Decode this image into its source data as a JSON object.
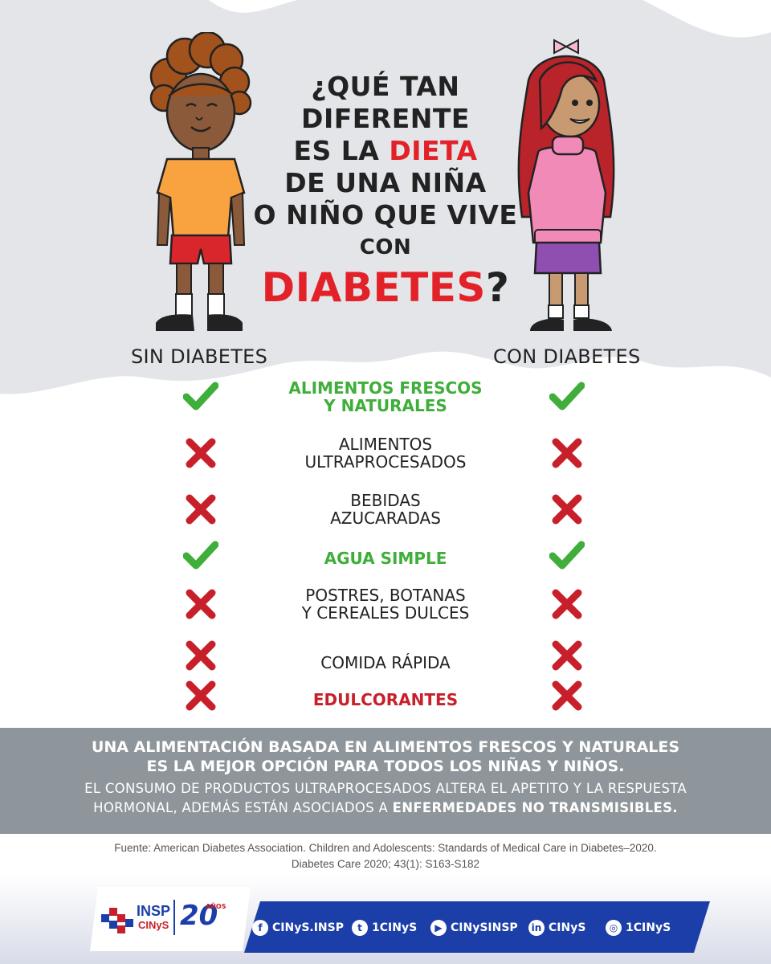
{
  "title": {
    "line1": "¿QUÉ TAN",
    "line2": "DIFERENTE",
    "line3_pre": "ES LA ",
    "line3_red": "DIETA",
    "line4": "DE UNA NIÑA",
    "line5": "O NIÑO QUE VIVE",
    "line6": "CON",
    "line7_red": "DIABETES",
    "line7_post": "?"
  },
  "columns": {
    "left": "SIN DIABETES",
    "right": "CON DIABETES"
  },
  "rows": [
    {
      "line1": "ALIMENTOS FRESCOS",
      "line2": "Y NATURALES",
      "style": "green",
      "sin": "check",
      "con": "check"
    },
    {
      "line1": "ALIMENTOS",
      "line2": "ULTRAPROCESADOS",
      "style": "normal",
      "sin": "cross",
      "con": "cross"
    },
    {
      "line1": "BEBIDAS",
      "line2": "AZUCARADAS",
      "style": "normal",
      "sin": "cross",
      "con": "cross"
    },
    {
      "line1": "AGUA SIMPLE",
      "line2": "",
      "style": "green",
      "sin": "check",
      "con": "check"
    },
    {
      "line1": "POSTRES, BOTANAS",
      "line2": "Y CEREALES DULCES",
      "style": "normal",
      "sin": "cross",
      "con": "cross"
    },
    {
      "line1": "COMIDA RÁPIDA",
      "line2": "",
      "style": "normal",
      "sin": "cross",
      "con": "cross"
    },
    {
      "line1": "EDULCORANTES",
      "line2": "",
      "style": "red",
      "sin": "cross",
      "con": "cross"
    }
  ],
  "banner": {
    "line1": "UNA ALIMENTACIÓN BASADA EN ALIMENTOS FRESCOS Y NATURALES",
    "line2": "ES LA MEJOR OPCIÓN PARA TODOS LOS NIÑAS Y NIÑOS.",
    "line3": "EL CONSUMO DE PRODUCTOS ULTRAPROCESADOS ALTERA EL APETITO Y LA RESPUESTA",
    "line4_pre": "HORMONAL, ADEMÁS ESTÁN ASOCIADOS A ",
    "line4_bold": "ENFERMEDADES NO TRANSMISIBLES."
  },
  "source": {
    "line1": "Fuente: American Diabetes Association. Children and Adolescents: Standards of Medical Care in Diabetes–2020.",
    "line2": "Diabetes Care 2020; 43(1): S163-S182"
  },
  "logo": {
    "insp": "INSP",
    "cinys": "CINyS",
    "anniversary_num": "20",
    "anniversary_word": "AÑOS"
  },
  "social": [
    {
      "icon": "facebook-icon",
      "glyph": "f",
      "handle": "CINyS.INSP"
    },
    {
      "icon": "twitter-icon",
      "glyph": "t",
      "handle": "1CINyS"
    },
    {
      "icon": "youtube-icon",
      "glyph": "▶",
      "handle": "CINySINSP"
    },
    {
      "icon": "linkedin-icon",
      "glyph": "in",
      "handle": "CINyS"
    },
    {
      "icon": "instagram-icon",
      "glyph": "◎",
      "handle": "1CINyS"
    }
  ],
  "colors": {
    "red_accent": "#e32129",
    "green_check": "#3fae3a",
    "red_cross": "#c8202b",
    "banner_gray": "#8e969b",
    "social_blue": "#1b3ea8"
  }
}
